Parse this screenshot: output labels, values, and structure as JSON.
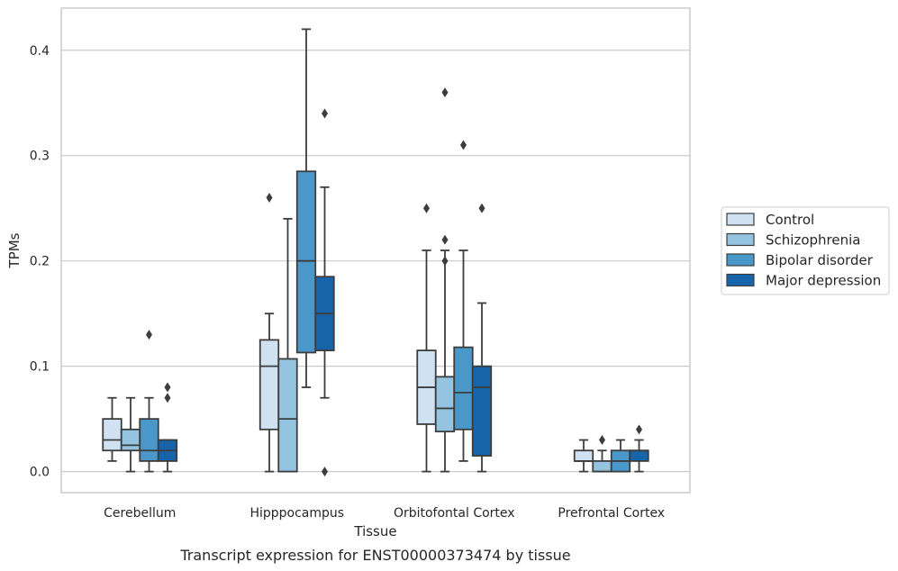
{
  "chart_data": {
    "type": "boxplot",
    "xlabel": "Tissue",
    "ylabel": "TPMs",
    "caption": "Transcript expression for ENST00000373474 by tissue",
    "ylim": [
      -0.02,
      0.44
    ],
    "yticks": [
      0.0,
      0.1,
      0.2,
      0.3,
      0.4
    ],
    "ytick_labels": [
      "0.0",
      "0.1",
      "0.2",
      "0.3",
      "0.4"
    ],
    "grid": "horizontal",
    "legend_position": "right",
    "categories": [
      "Cerebellum",
      "Hipppocampus",
      "Orbitofontal Cortex",
      "Prefrontal Cortex"
    ],
    "series": [
      {
        "name": "Control",
        "color": "#d0e1f2",
        "boxes": [
          {
            "whislo": 0.01,
            "q1": 0.02,
            "med": 0.03,
            "q3": 0.05,
            "whishi": 0.07,
            "fliers": []
          },
          {
            "whislo": 0.0,
            "q1": 0.04,
            "med": 0.1,
            "q3": 0.125,
            "whishi": 0.15,
            "fliers": [
              0.26
            ]
          },
          {
            "whislo": 0.0,
            "q1": 0.045,
            "med": 0.08,
            "q3": 0.115,
            "whishi": 0.21,
            "fliers": [
              0.25
            ]
          },
          {
            "whislo": 0.0,
            "q1": 0.01,
            "med": 0.01,
            "q3": 0.02,
            "whishi": 0.03,
            "fliers": []
          }
        ]
      },
      {
        "name": "Schizophrenia",
        "color": "#94c4df",
        "boxes": [
          {
            "whislo": 0.0,
            "q1": 0.02,
            "med": 0.025,
            "q3": 0.04,
            "whishi": 0.07,
            "fliers": []
          },
          {
            "whislo": 0.0,
            "q1": 0.0,
            "med": 0.05,
            "q3": 0.107,
            "whishi": 0.24,
            "fliers": []
          },
          {
            "whislo": 0.0,
            "q1": 0.038,
            "med": 0.06,
            "q3": 0.09,
            "whishi": 0.21,
            "fliers": [
              0.2,
              0.22,
              0.36
            ]
          },
          {
            "whislo": 0.0,
            "q1": 0.0,
            "med": 0.0,
            "q3": 0.01,
            "whishi": 0.02,
            "fliers": [
              0.03
            ]
          }
        ]
      },
      {
        "name": "Bipolar disorder",
        "color": "#4a98c9",
        "boxes": [
          {
            "whislo": 0.0,
            "q1": 0.01,
            "med": 0.02,
            "q3": 0.05,
            "whishi": 0.07,
            "fliers": [
              0.13
            ]
          },
          {
            "whislo": 0.08,
            "q1": 0.113,
            "med": 0.2,
            "q3": 0.285,
            "whishi": 0.42,
            "fliers": []
          },
          {
            "whislo": 0.01,
            "q1": 0.04,
            "med": 0.075,
            "q3": 0.118,
            "whishi": 0.21,
            "fliers": [
              0.31
            ]
          },
          {
            "whislo": 0.0,
            "q1": 0.0,
            "med": 0.01,
            "q3": 0.02,
            "whishi": 0.03,
            "fliers": []
          }
        ]
      },
      {
        "name": "Major depression",
        "color": "#1764ab",
        "boxes": [
          {
            "whislo": 0.0,
            "q1": 0.01,
            "med": 0.02,
            "q3": 0.03,
            "whishi": 0.03,
            "fliers": [
              0.07,
              0.08
            ]
          },
          {
            "whislo": 0.07,
            "q1": 0.115,
            "med": 0.15,
            "q3": 0.185,
            "whishi": 0.27,
            "fliers": [
              0.0,
              0.34
            ]
          },
          {
            "whislo": 0.0,
            "q1": 0.015,
            "med": 0.08,
            "q3": 0.1,
            "whishi": 0.16,
            "fliers": [
              0.25
            ]
          },
          {
            "whislo": 0.0,
            "q1": 0.01,
            "med": 0.02,
            "q3": 0.02,
            "whishi": 0.03,
            "fliers": [
              0.04
            ]
          }
        ]
      }
    ]
  }
}
